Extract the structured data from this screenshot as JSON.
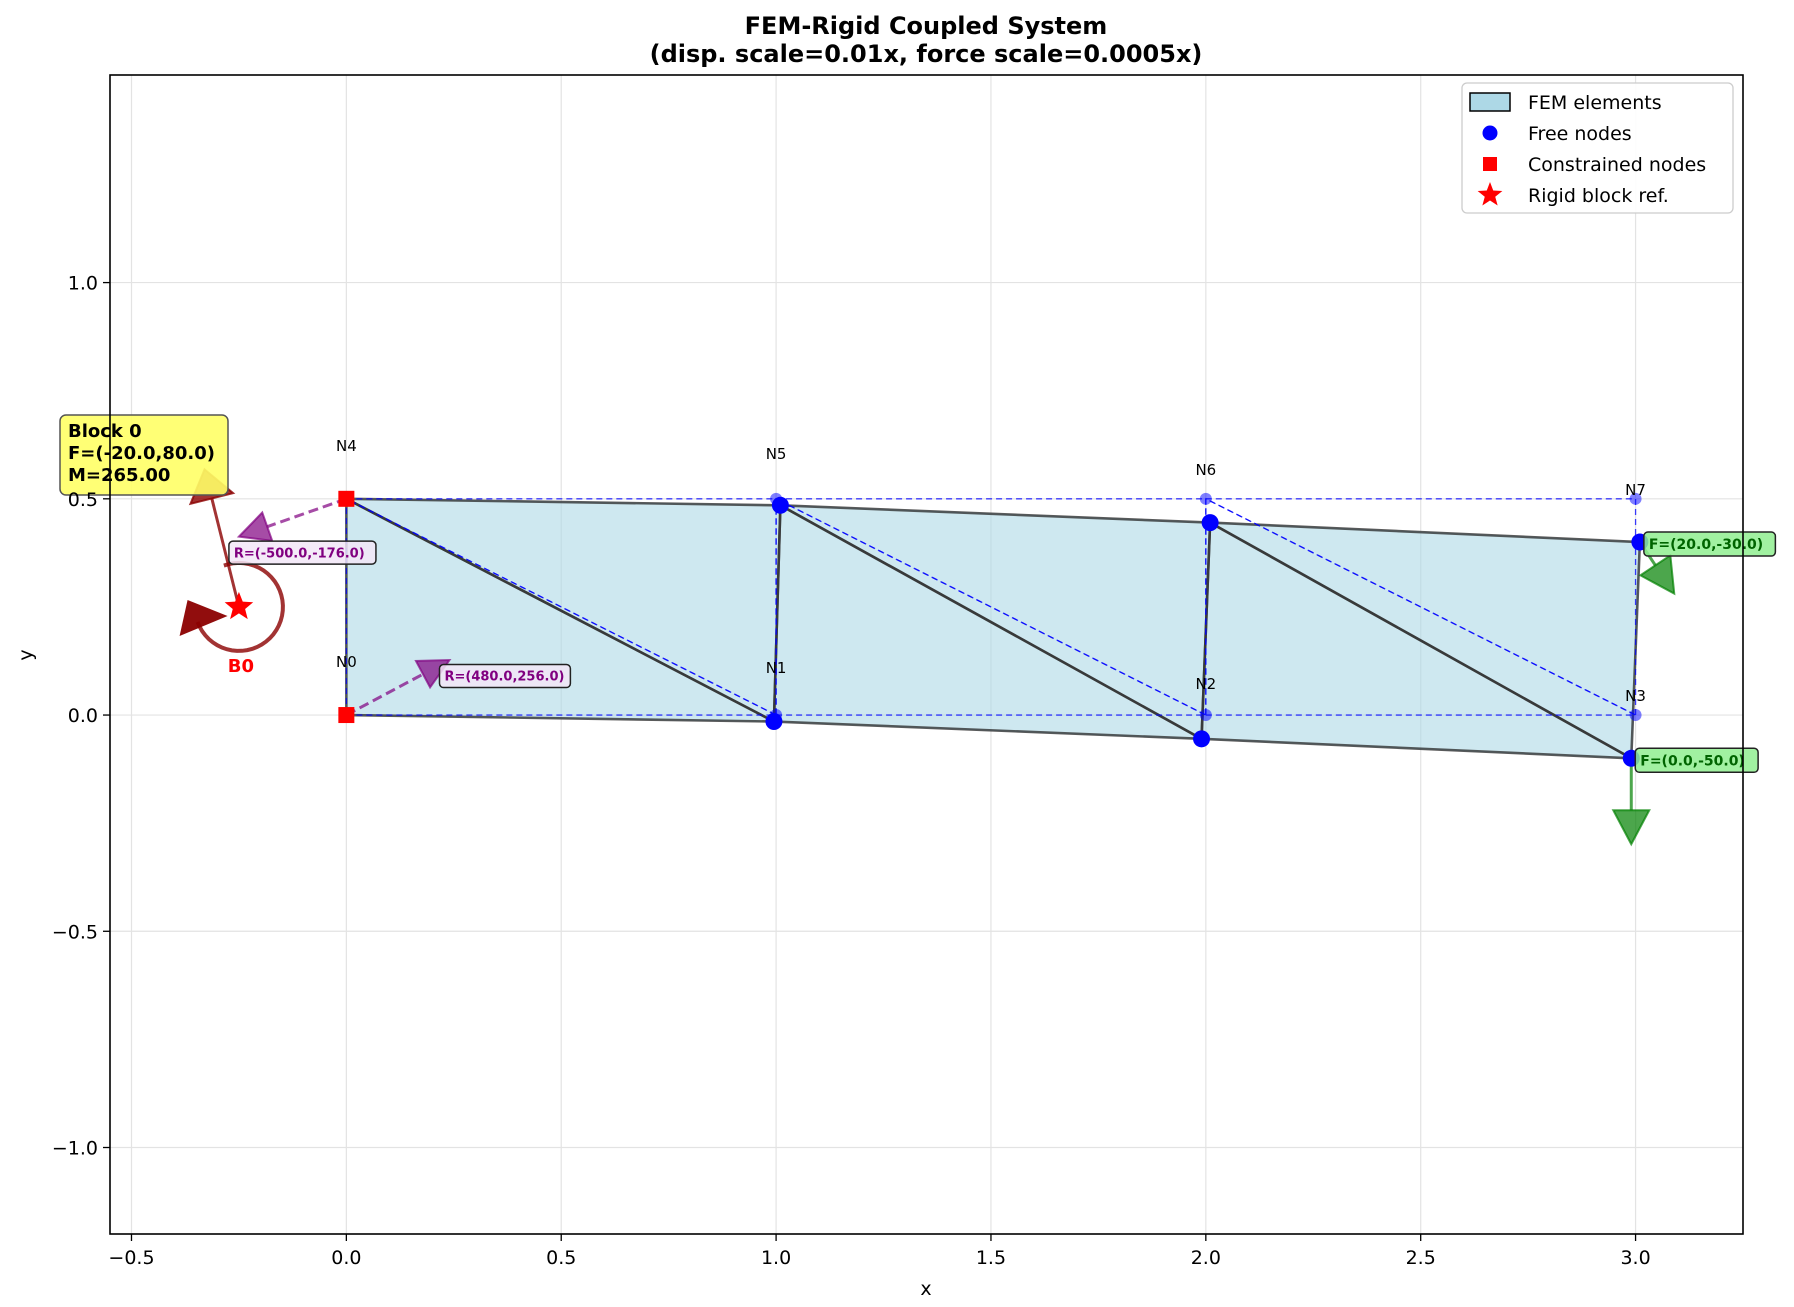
{
  "chart_data": {
    "type": "scatter",
    "title": "FEM-Rigid Coupled System",
    "subtitle": "(disp. scale=0.01x, force scale=0.0005x)",
    "xlabel": "x",
    "ylabel": "y",
    "xlim": [
      -0.55,
      3.25
    ],
    "ylim": [
      -1.2,
      1.48
    ],
    "xticks": [
      -0.5,
      0.0,
      0.5,
      1.0,
      1.5,
      2.0,
      2.5,
      3.0
    ],
    "xtick_labels": [
      "−0.5",
      "0.0",
      "0.5",
      "1.0",
      "1.5",
      "2.0",
      "2.5",
      "3.0"
    ],
    "yticks": [
      -1.0,
      -0.5,
      0.0,
      0.5,
      1.0
    ],
    "ytick_labels": [
      "−1.0",
      "−0.5",
      "0.0",
      "0.5",
      "1.0"
    ],
    "grid": true,
    "legend_position": "top-right",
    "legend": [
      {
        "label": "FEM elements",
        "marker": "patch"
      },
      {
        "label": "Free nodes",
        "marker": "circle"
      },
      {
        "label": "Constrained nodes",
        "marker": "square"
      },
      {
        "label": "Rigid block ref.",
        "marker": "star"
      }
    ],
    "nodes": [
      {
        "label": "N0",
        "x": 0.0,
        "y": 0.0,
        "dx": 0.0,
        "dy": 0.0,
        "constrained": true
      },
      {
        "label": "N1",
        "x": 1.0,
        "y": 0.0,
        "dx": -0.005,
        "dy": -0.015,
        "constrained": false
      },
      {
        "label": "N2",
        "x": 2.0,
        "y": 0.0,
        "dx": -0.01,
        "dy": -0.055,
        "constrained": false
      },
      {
        "label": "N3",
        "x": 3.0,
        "y": 0.0,
        "dx": -0.01,
        "dy": -0.1,
        "constrained": false
      },
      {
        "label": "N4",
        "x": 0.0,
        "y": 0.5,
        "dx": 0.0,
        "dy": 0.0,
        "constrained": true
      },
      {
        "label": "N5",
        "x": 1.0,
        "y": 0.5,
        "dx": 0.01,
        "dy": -0.015,
        "constrained": false
      },
      {
        "label": "N6",
        "x": 2.0,
        "y": 0.5,
        "dx": 0.01,
        "dy": -0.055,
        "constrained": false
      },
      {
        "label": "N7",
        "x": 3.0,
        "y": 0.5,
        "dx": 0.01,
        "dy": -0.1,
        "constrained": false
      }
    ],
    "elements": [
      [
        0,
        1,
        4
      ],
      [
        1,
        5,
        4
      ],
      [
        1,
        2,
        5
      ],
      [
        2,
        6,
        5
      ],
      [
        2,
        3,
        6
      ],
      [
        3,
        7,
        6
      ]
    ],
    "rigid_block": {
      "label": "B0",
      "x": -0.25,
      "y": 0.25,
      "info_lines": [
        "Block 0",
        "F=(-20.0,80.0)",
        "M=265.00"
      ],
      "force": {
        "fx": -20.0,
        "fy": 80.0
      },
      "moment": 265.0
    },
    "reactions": [
      {
        "node": 4,
        "label": "R=(-500.0,-176.0)",
        "fx": -500.0,
        "fy": -176.0
      },
      {
        "node": 0,
        "label": "R=(480.0,256.0)",
        "fx": 480.0,
        "fy": 256.0
      }
    ],
    "applied_forces": [
      {
        "node": 7,
        "label": "F=(20.0,-30.0)",
        "fx": 20.0,
        "fy": -30.0
      },
      {
        "node": 3,
        "label": "F=(0.0,-50.0)",
        "fx": 0.0,
        "fy": -50.0
      }
    ],
    "colors": {
      "element_fill": "#add8e6",
      "element_edge": "#333333",
      "free_node": "#0000ff",
      "constrained_node": "#ff0000",
      "reaction": "#800080",
      "applied_force": "#008000",
      "rigid": "#8b0000",
      "info_box": "#ffff66"
    }
  }
}
